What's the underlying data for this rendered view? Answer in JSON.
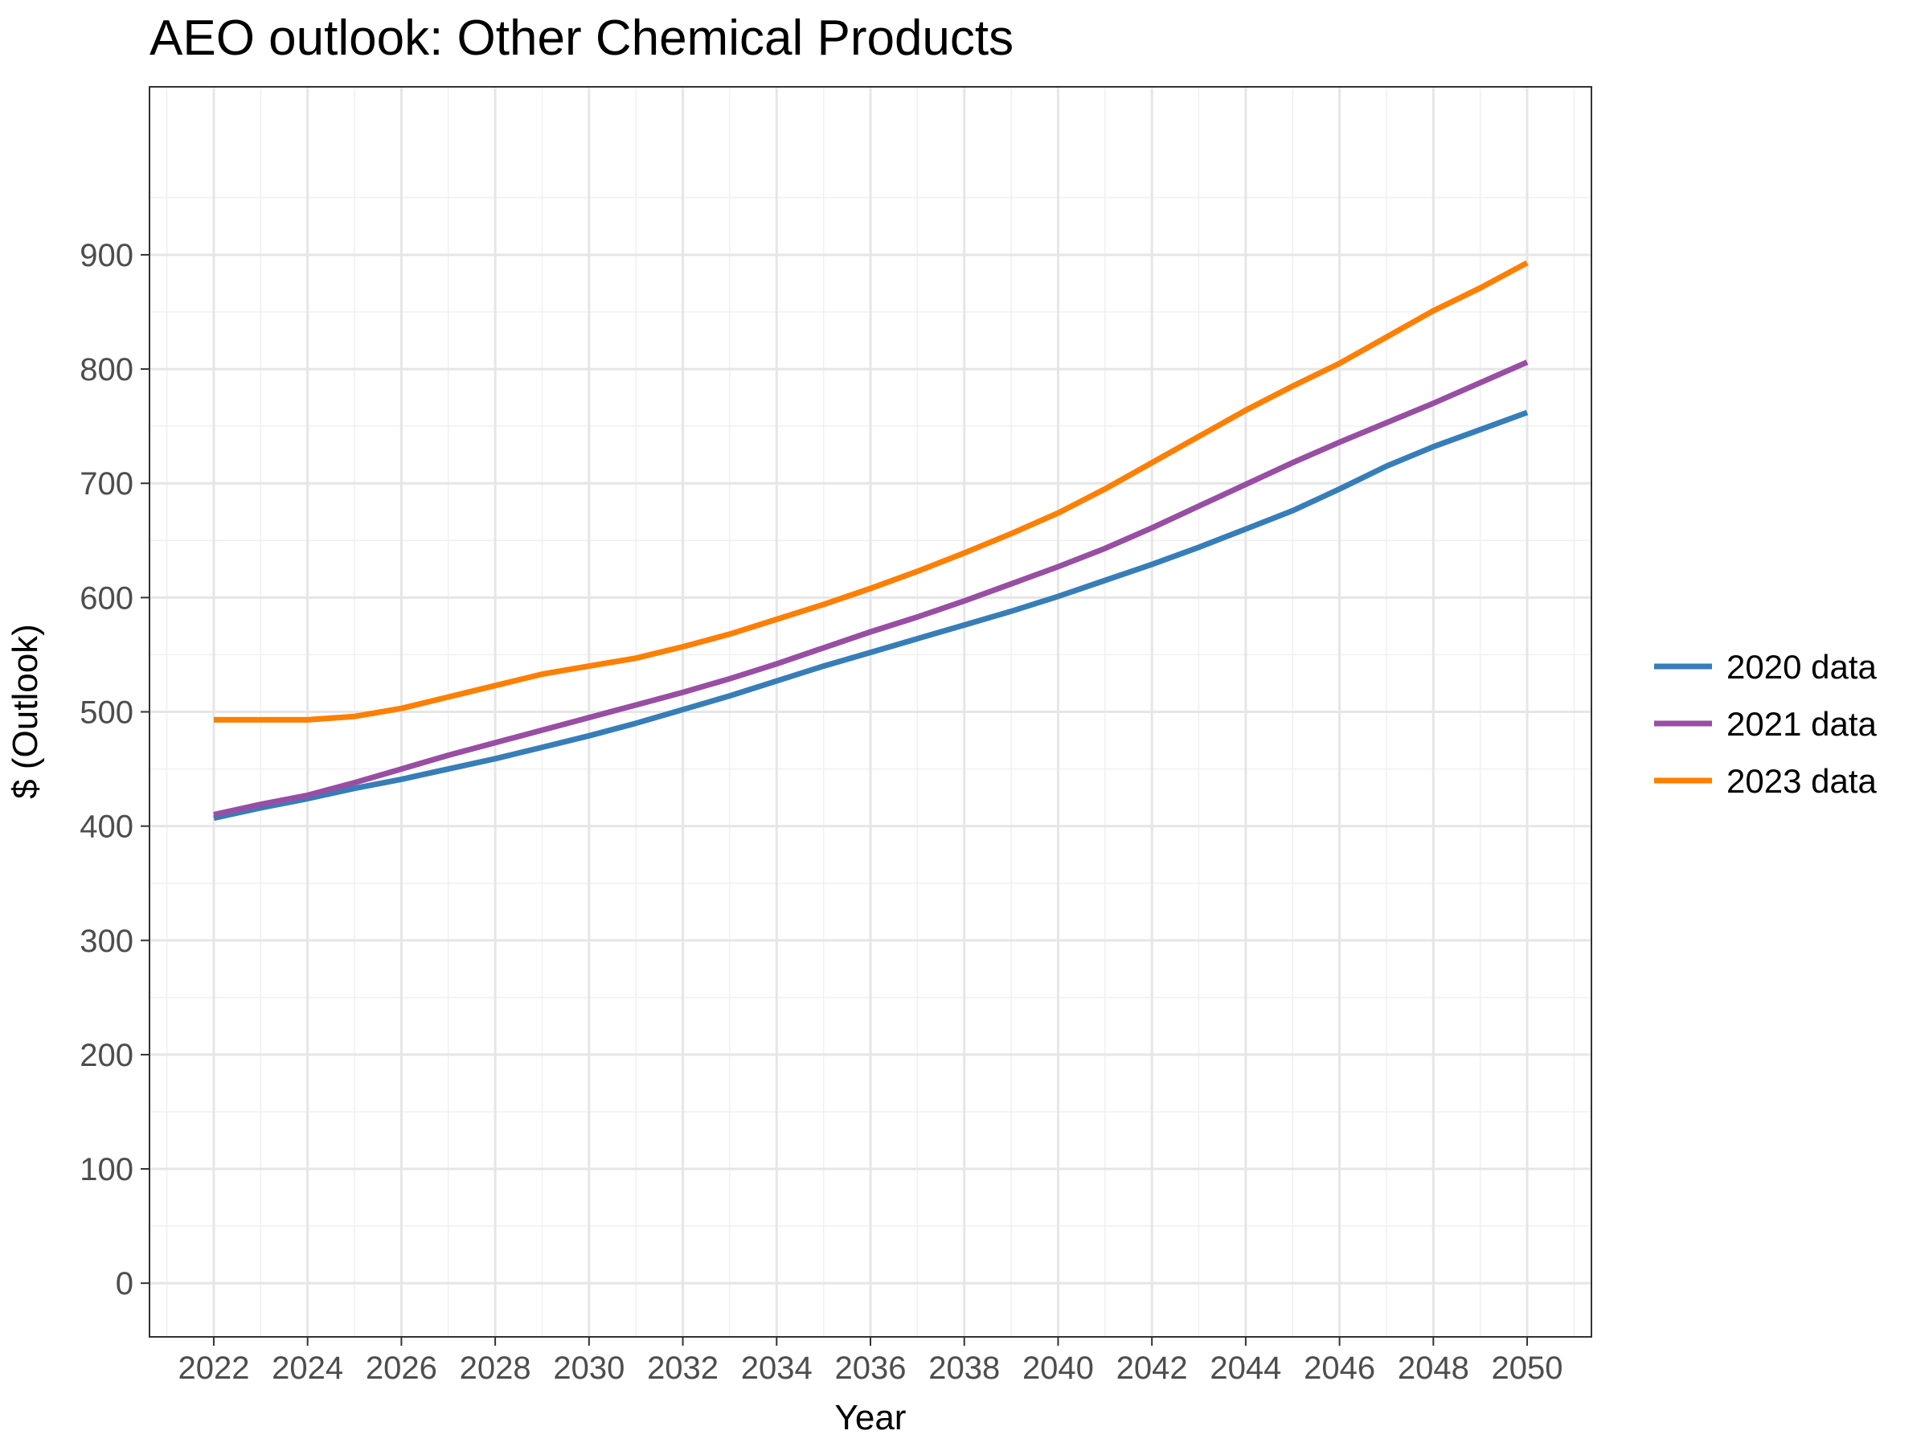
{
  "chart_data": {
    "type": "line",
    "title": "AEO outlook: Other Chemical Products",
    "xlabel": "Year",
    "ylabel": "$ (Outlook)",
    "xlim": [
      2020.63,
      2051.37
    ],
    "ylim": [
      -47,
      1047
    ],
    "x_ticks": [
      2022,
      2024,
      2026,
      2028,
      2030,
      2032,
      2034,
      2036,
      2038,
      2040,
      2042,
      2044,
      2046,
      2048,
      2050
    ],
    "y_ticks": [
      0,
      100,
      200,
      300,
      400,
      500,
      600,
      700,
      800,
      900
    ],
    "grid": true,
    "legend_position": "right",
    "x": [
      2022,
      2023,
      2024,
      2025,
      2026,
      2027,
      2028,
      2029,
      2030,
      2031,
      2032,
      2033,
      2034,
      2035,
      2036,
      2037,
      2038,
      2039,
      2040,
      2041,
      2042,
      2043,
      2044,
      2045,
      2046,
      2047,
      2048,
      2049,
      2050
    ],
    "series": [
      {
        "name": "2020 data",
        "color": "#377eb8",
        "values": [
          407,
          416,
          424,
          433,
          441,
          450,
          459,
          469,
          479,
          490,
          502,
          514,
          527,
          540,
          552,
          564,
          576,
          588,
          601,
          615,
          629,
          644,
          660,
          676,
          695,
          715,
          732,
          747,
          762
        ]
      },
      {
        "name": "2021 data",
        "color": "#984ea3",
        "values": [
          410,
          419,
          427,
          438,
          450,
          462,
          473,
          484,
          495,
          506,
          517,
          529,
          542,
          556,
          570,
          583,
          597,
          612,
          627,
          643,
          661,
          680,
          699,
          718,
          736,
          753,
          770,
          788,
          806
        ]
      },
      {
        "name": "2023 data",
        "color": "#ff7f00",
        "values": [
          493,
          493,
          493,
          496,
          503,
          513,
          523,
          533,
          540,
          547,
          557,
          568,
          581,
          594,
          608,
          623,
          639,
          656,
          674,
          695,
          718,
          741,
          764,
          785,
          805,
          828,
          851,
          871,
          893
        ]
      }
    ]
  }
}
